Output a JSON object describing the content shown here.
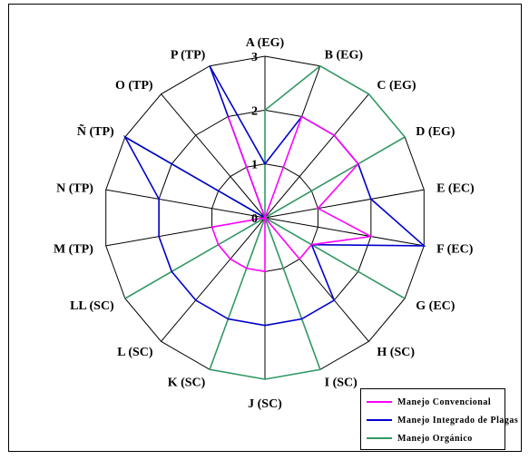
{
  "chart_data": {
    "type": "radar",
    "title": "",
    "categories": [
      "A (EG)",
      "B (EG)",
      "C (EG)",
      "D (EG)",
      "E (EC)",
      "F (EC)",
      "G (EC)",
      "H (SC)",
      "I (SC)",
      "J (SC)",
      "K (SC)",
      "L (SC)",
      "LL (SC)",
      "M (TP)",
      "N (TP)",
      "Ñ (TP)",
      "O (TP)",
      "P (TP)"
    ],
    "radial_ticks": [
      "0",
      "1",
      "2",
      "3"
    ],
    "rlim": [
      0,
      3
    ],
    "grid": true,
    "legend_position": "bottom-right",
    "series": [
      {
        "name": "Manejo Convencional",
        "color": "#ff00ff",
        "values": [
          0,
          2,
          2,
          2,
          1,
          2,
          1,
          1,
          0,
          1,
          1,
          1,
          1,
          1,
          0,
          0,
          0,
          2
        ]
      },
      {
        "name": "Manejo Integrado de Plagas",
        "color": "#0000cc",
        "values": [
          1,
          2,
          2,
          2,
          2,
          3,
          1,
          2,
          2,
          2,
          2,
          2,
          2,
          2,
          2,
          3,
          0,
          3
        ]
      },
      {
        "name": "Manejo Orgánico",
        "color": "#339966",
        "values": [
          2,
          3,
          3,
          3,
          0,
          0,
          3,
          0,
          3,
          3,
          3,
          0,
          3,
          0,
          0,
          3,
          0,
          0
        ]
      }
    ]
  }
}
